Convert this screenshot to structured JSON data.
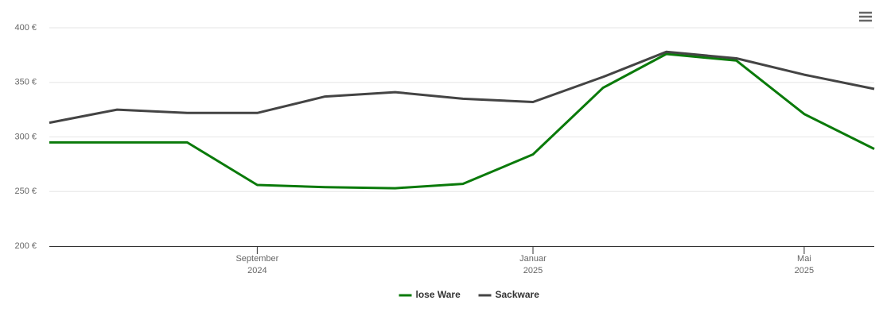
{
  "chart_data": {
    "type": "line",
    "x": [
      "2024-06",
      "2024-07",
      "2024-08",
      "2024-09",
      "2024-10",
      "2024-11",
      "2024-12",
      "2025-01",
      "2025-02",
      "2025-03",
      "2025-04",
      "2025-05",
      "2025-06"
    ],
    "series": [
      {
        "name": "lose Ware",
        "color": "#0a7a0a",
        "values": [
          295,
          295,
          295,
          256,
          254,
          253,
          257,
          284,
          345,
          376,
          370,
          321,
          289
        ]
      },
      {
        "name": "Sackware",
        "color": "#444444",
        "values": [
          313,
          325,
          322,
          322,
          337,
          341,
          335,
          332,
          355,
          378,
          372,
          357,
          344
        ]
      }
    ],
    "xlim": [
      "2024-06",
      "2025-06"
    ],
    "xticks": [
      {
        "value": "2024-09",
        "label": "September",
        "year": "2024"
      },
      {
        "value": "2025-01",
        "label": "Januar",
        "year": "2025"
      },
      {
        "value": "2025-05",
        "label": "Mai",
        "year": "2025"
      }
    ],
    "ylim": [
      200,
      400
    ],
    "yticks": [
      {
        "value": 200,
        "label": "200 €"
      },
      {
        "value": 250,
        "label": "250 €"
      },
      {
        "value": 300,
        "label": "300 €"
      },
      {
        "value": 350,
        "label": "350 €"
      },
      {
        "value": 400,
        "label": "400 €"
      }
    ],
    "grid": true,
    "legend": "bottom"
  }
}
